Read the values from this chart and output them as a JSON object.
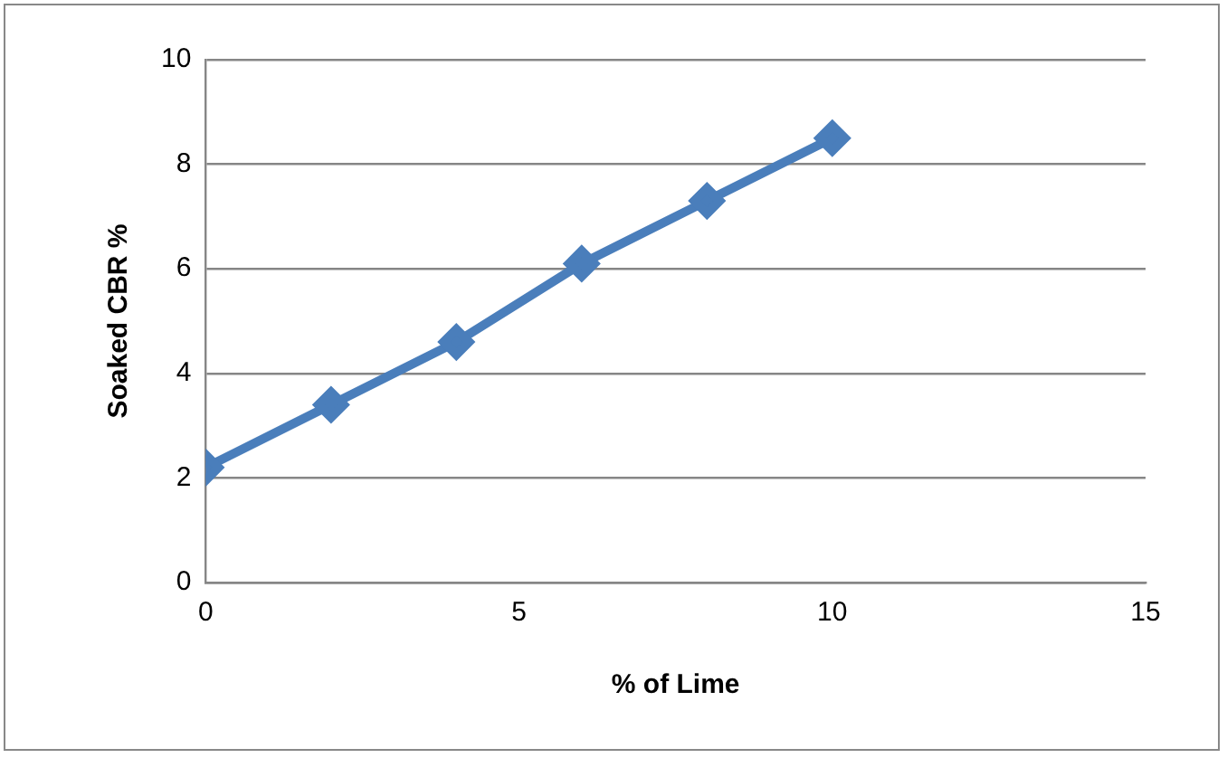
{
  "chart_data": {
    "type": "line",
    "xlabel": "% of Lime",
    "ylabel": "Soaked CBR %",
    "x": [
      0,
      2,
      4,
      6,
      8,
      10
    ],
    "series": [
      {
        "color": "#4a7ebb",
        "values": [
          2.2,
          3.4,
          4.6,
          6.1,
          7.3,
          8.5
        ]
      }
    ],
    "xlim": [
      0,
      15
    ],
    "xticks": [
      0,
      5,
      10,
      15
    ],
    "ylim": [
      0,
      10
    ],
    "yticks": [
      0,
      2,
      4,
      6,
      8,
      10
    ],
    "grid": "y",
    "legend": false,
    "marker": "diamond",
    "line_style": "solid"
  }
}
